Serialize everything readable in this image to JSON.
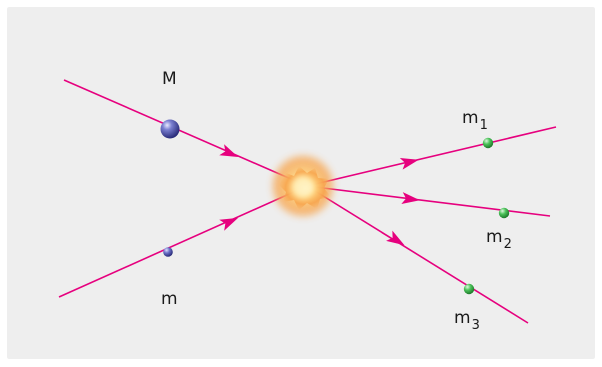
{
  "diagram": {
    "colors": {
      "background": "#eeeeee",
      "trajectory": "#e6007e",
      "heavy_particle": "#4b4fa8",
      "light_particle": "#4b4fa8",
      "product_particle": "#3fb24a",
      "collision_core": "#ffd27a",
      "collision_glow": "#f7a24a"
    },
    "labels": {
      "heavy": "M",
      "light": "m",
      "product1_base": "m",
      "product1_sub": "1",
      "product2_base": "m",
      "product2_sub": "2",
      "product3_base": "m",
      "product3_sub": "3"
    },
    "icons": {
      "heavy": "large-sphere-icon",
      "light": "small-sphere-icon",
      "product": "green-sphere-icon",
      "collision": "burst-icon",
      "direction": "arrowhead-icon"
    }
  }
}
